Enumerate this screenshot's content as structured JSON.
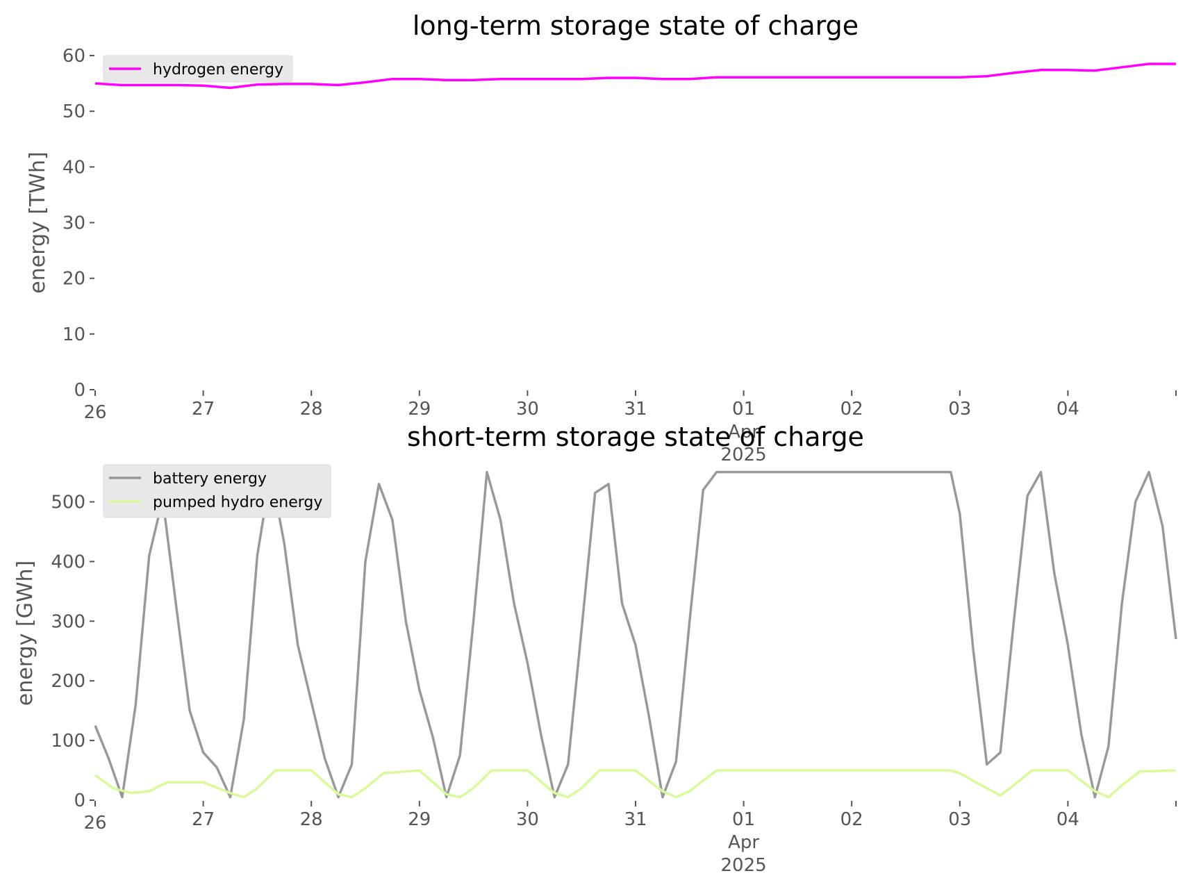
{
  "chart_data": [
    {
      "type": "line",
      "title": "long-term storage state of charge",
      "xlabel": "",
      "ylabel": "energy [TWh]",
      "x_ticks": [
        "26",
        "27",
        "28",
        "29",
        "30",
        "31",
        "01\nApr\n2025",
        "02",
        "03",
        "04"
      ],
      "xlim": [
        "2025-03-26",
        "2025-04-05"
      ],
      "ylim": [
        0,
        60
      ],
      "y_ticks": [
        "0",
        "10",
        "20",
        "30",
        "40",
        "50",
        "60"
      ],
      "grid": false,
      "legend_position": "upper left",
      "series": [
        {
          "name": "hydrogen energy",
          "color": "#ff00ff",
          "x": [
            "2025-03-26",
            "2025-03-26T06",
            "2025-03-26T12",
            "2025-03-26T18",
            "2025-03-27",
            "2025-03-27T06",
            "2025-03-27T12",
            "2025-03-27T18",
            "2025-03-28",
            "2025-03-28T06",
            "2025-03-28T12",
            "2025-03-28T18",
            "2025-03-29",
            "2025-03-29T06",
            "2025-03-29T12",
            "2025-03-29T18",
            "2025-03-30",
            "2025-03-30T06",
            "2025-03-30T12",
            "2025-03-30T18",
            "2025-03-31",
            "2025-03-31T06",
            "2025-03-31T12",
            "2025-03-31T18",
            "2025-04-01",
            "2025-04-01T12",
            "2025-04-02",
            "2025-04-02T12",
            "2025-04-03",
            "2025-04-03T06",
            "2025-04-03T12",
            "2025-04-03T18",
            "2025-04-04",
            "2025-04-04T06",
            "2025-04-04T12",
            "2025-04-04T18",
            "2025-04-05"
          ],
          "values": [
            55.0,
            54.7,
            54.7,
            54.7,
            54.6,
            54.2,
            54.8,
            54.9,
            54.9,
            54.7,
            55.2,
            55.8,
            55.8,
            55.6,
            55.6,
            55.8,
            55.8,
            55.8,
            55.8,
            56.0,
            56.0,
            55.8,
            55.8,
            56.1,
            56.1,
            56.1,
            56.1,
            56.1,
            56.1,
            56.3,
            56.9,
            57.4,
            57.4,
            57.3,
            57.9,
            58.5,
            58.5
          ]
        }
      ]
    },
    {
      "type": "line",
      "title": "short-term storage state of charge",
      "xlabel": "",
      "ylabel": "energy [GWh]",
      "x_ticks": [
        "26",
        "27",
        "28",
        "29",
        "30",
        "31",
        "01\nApr\n2025",
        "02",
        "03",
        "04"
      ],
      "xlim": [
        "2025-03-26",
        "2025-04-05"
      ],
      "ylim": [
        0,
        560
      ],
      "y_ticks": [
        "0",
        "100",
        "200",
        "300",
        "400",
        "500"
      ],
      "grid": false,
      "legend_position": "upper left",
      "series": [
        {
          "name": "battery energy",
          "color": "#999999",
          "x": [
            "2025-03-26",
            "2025-03-26T03",
            "2025-03-26T06",
            "2025-03-26T09",
            "2025-03-26T12",
            "2025-03-26T15",
            "2025-03-26T18",
            "2025-03-26T21",
            "2025-03-27",
            "2025-03-27T03",
            "2025-03-27T06",
            "2025-03-27T09",
            "2025-03-27T12",
            "2025-03-27T15",
            "2025-03-27T18",
            "2025-03-27T21",
            "2025-03-28",
            "2025-03-28T03",
            "2025-03-28T06",
            "2025-03-28T09",
            "2025-03-28T12",
            "2025-03-28T15",
            "2025-03-28T18",
            "2025-03-28T21",
            "2025-03-29",
            "2025-03-29T03",
            "2025-03-29T06",
            "2025-03-29T09",
            "2025-03-29T12",
            "2025-03-29T15",
            "2025-03-29T18",
            "2025-03-29T21",
            "2025-03-30",
            "2025-03-30T03",
            "2025-03-30T06",
            "2025-03-30T09",
            "2025-03-30T12",
            "2025-03-30T15",
            "2025-03-30T18",
            "2025-03-30T21",
            "2025-03-31",
            "2025-03-31T03",
            "2025-03-31T06",
            "2025-03-31T09",
            "2025-03-31T12",
            "2025-03-31T15",
            "2025-03-31T18",
            "2025-03-31T21",
            "2025-04-01",
            "2025-04-02",
            "2025-04-02T22",
            "2025-04-03",
            "2025-04-03T03",
            "2025-04-03T06",
            "2025-04-03T09",
            "2025-04-03T12",
            "2025-04-03T15",
            "2025-04-03T18",
            "2025-04-03T21",
            "2025-04-04",
            "2025-04-04T03",
            "2025-04-04T06",
            "2025-04-04T09",
            "2025-04-04T12",
            "2025-04-04T15",
            "2025-04-04T18",
            "2025-04-04T21",
            "2025-04-05"
          ],
          "values": [
            125,
            70,
            5,
            160,
            410,
            505,
            325,
            150,
            80,
            55,
            5,
            135,
            410,
            550,
            430,
            260,
            165,
            70,
            5,
            60,
            400,
            530,
            470,
            300,
            185,
            105,
            5,
            75,
            300,
            550,
            470,
            330,
            230,
            110,
            5,
            60,
            285,
            515,
            530,
            330,
            260,
            140,
            5,
            65,
            300,
            520,
            550,
            550,
            550,
            550,
            550,
            480,
            250,
            60,
            80,
            300,
            510,
            550,
            380,
            260,
            110,
            5,
            90,
            330,
            500,
            550,
            460,
            270
          ]
        },
        {
          "name": "pumped hydro energy",
          "color": "#d9f99a",
          "x": [
            "2025-03-26",
            "2025-03-26T04",
            "2025-03-26T08",
            "2025-03-26T12",
            "2025-03-26T16",
            "2025-03-27",
            "2025-03-27T06",
            "2025-03-27T09",
            "2025-03-27T12",
            "2025-03-27T16",
            "2025-03-28",
            "2025-03-28T06",
            "2025-03-28T09",
            "2025-03-28T12",
            "2025-03-28T16",
            "2025-03-29",
            "2025-03-29T06",
            "2025-03-29T09",
            "2025-03-29T12",
            "2025-03-29T16",
            "2025-03-30",
            "2025-03-30T06",
            "2025-03-30T09",
            "2025-03-30T12",
            "2025-03-30T16",
            "2025-03-31",
            "2025-03-31T06",
            "2025-03-31T09",
            "2025-03-31T12",
            "2025-03-31T18",
            "2025-04-01",
            "2025-04-02",
            "2025-04-02T22",
            "2025-04-03",
            "2025-04-03T06",
            "2025-04-03T09",
            "2025-04-03T12",
            "2025-04-03T16",
            "2025-04-04",
            "2025-04-04T06",
            "2025-04-04T09",
            "2025-04-04T12",
            "2025-04-04T16",
            "2025-04-05"
          ],
          "values": [
            42,
            20,
            12,
            15,
            30,
            30,
            12,
            5,
            20,
            50,
            50,
            10,
            5,
            20,
            45,
            50,
            10,
            5,
            20,
            50,
            50,
            12,
            5,
            20,
            50,
            50,
            15,
            5,
            15,
            50,
            50,
            50,
            50,
            45,
            20,
            8,
            25,
            50,
            50,
            15,
            5,
            25,
            48,
            50
          ]
        }
      ]
    }
  ]
}
